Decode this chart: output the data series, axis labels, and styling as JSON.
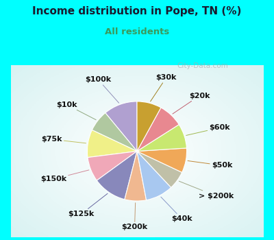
{
  "title": "Income distribution in Pope, TN (%)",
  "subtitle": "All residents",
  "title_color": "#1a1a2e",
  "subtitle_color": "#3a9a5c",
  "background_outer": "#00ffff",
  "background_inner_gradient_start": "#c8e8d8",
  "background_inner_gradient_end": "#ffffff",
  "watermark": "City-Data.com",
  "labels": [
    "$100k",
    "$10k",
    "$75k",
    "$150k",
    "$125k",
    "$200k",
    "$40k",
    "> $200k",
    "$50k",
    "$60k",
    "$20k",
    "$30k"
  ],
  "values": [
    11,
    7,
    9,
    8,
    11,
    7,
    9,
    6,
    8,
    8,
    8,
    8
  ],
  "colors": [
    "#b0a0d0",
    "#b0c8a0",
    "#f0f088",
    "#f0a8b8",
    "#8888bb",
    "#f0b890",
    "#a8c8f0",
    "#c0c0a8",
    "#f0a858",
    "#c8e870",
    "#e88890",
    "#c8a030"
  ],
  "label_fontsize": 8,
  "startangle": 90,
  "line_colors": [
    "#9090b8",
    "#90a880",
    "#c0c060",
    "#d08898",
    "#6868a0",
    "#c09870",
    "#8898c8",
    "#a0a888",
    "#c08838",
    "#a0b850",
    "#c06070",
    "#a08020"
  ]
}
